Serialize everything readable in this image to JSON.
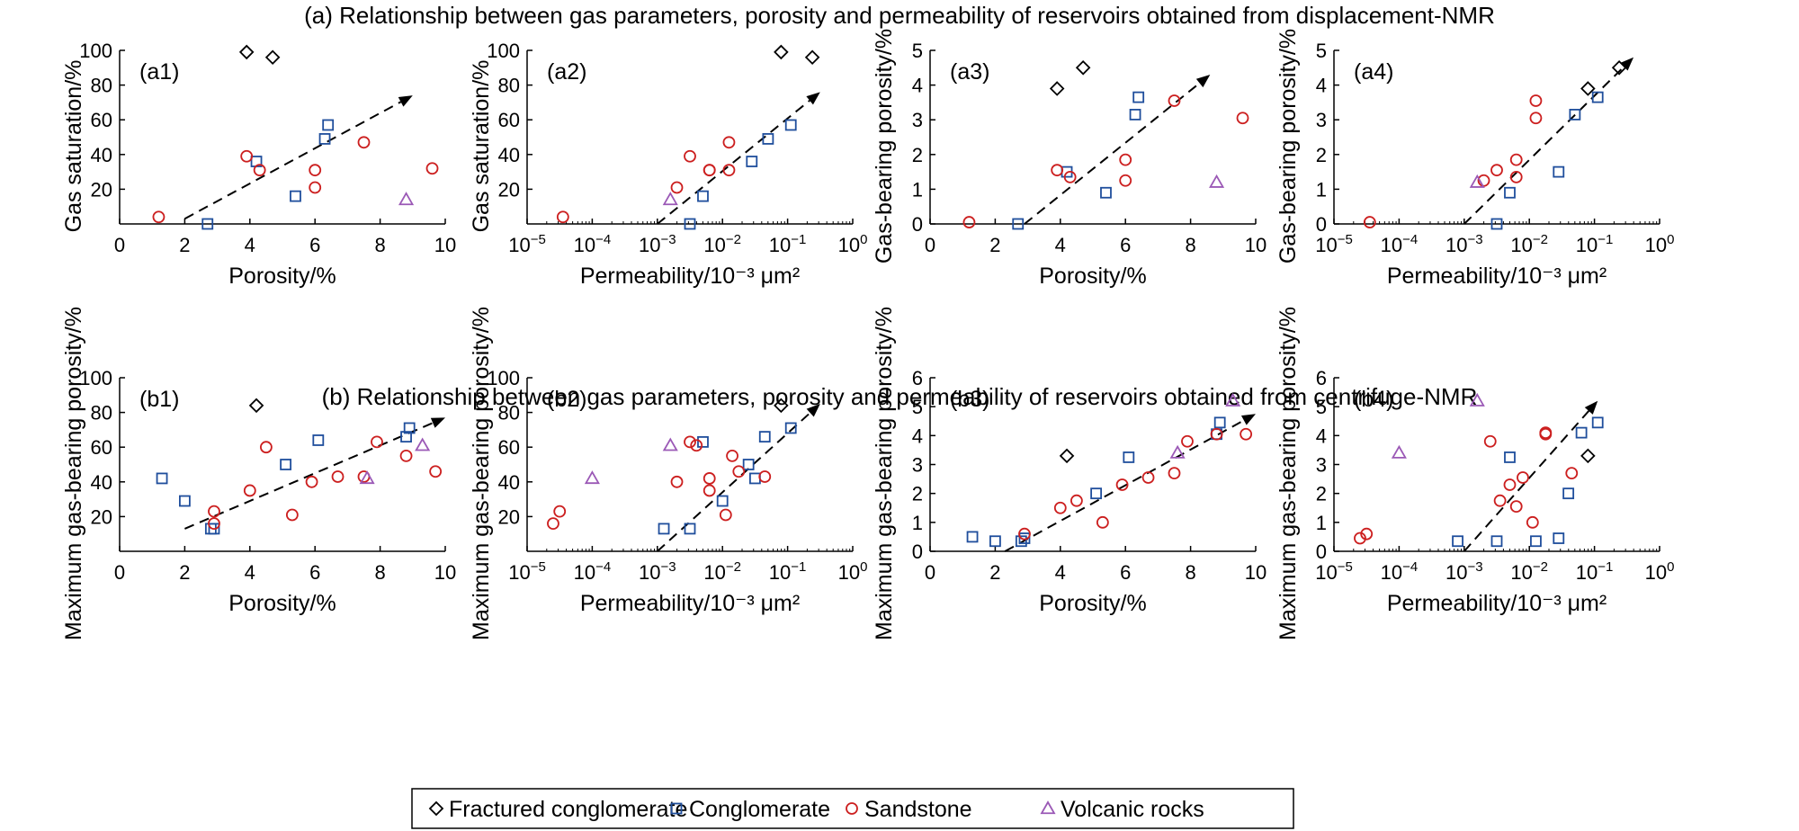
{
  "figure": {
    "title_a": "(a) Relationship between gas parameters, porosity and permeability of reservoirs obtained from displacement-NMR",
    "title_b": "(b) Relationship between gas parameters, porosity and permeability of reservoirs obtained from centrifuge-NMR"
  },
  "legend": {
    "items": [
      {
        "key": "frac",
        "label": "Fractured conglomerate",
        "marker": "diamond",
        "color": "#000000"
      },
      {
        "key": "cong",
        "label": "Conglomerate",
        "marker": "square",
        "color": "#1f4e9c"
      },
      {
        "key": "sand",
        "label": "Sandstone",
        "marker": "circle",
        "color": "#cc1f1f"
      },
      {
        "key": "volc",
        "label": "Volcanic rocks",
        "marker": "triangle",
        "color": "#9b59b6"
      }
    ]
  },
  "colors": {
    "frac": "#000000",
    "cong": "#1f4e9c",
    "sand": "#cc1f1f",
    "volc": "#9b59b6"
  },
  "chart_data": [
    {
      "id": "a1",
      "type": "scatter",
      "panel_label": "(a1)",
      "xlabel": "Porosity/%",
      "ylabel": "Gas saturation/%",
      "xscale": "linear",
      "xlim": [
        0,
        10
      ],
      "ylim": [
        0,
        100
      ],
      "xticks": [
        0,
        2,
        4,
        6,
        8,
        10
      ],
      "yticks": [
        20,
        40,
        60,
        80,
        100
      ],
      "trend": [
        [
          2.0,
          3
        ],
        [
          9.0,
          74
        ]
      ],
      "series": {
        "frac": [
          [
            3.9,
            99
          ],
          [
            4.7,
            96
          ]
        ],
        "cong": [
          [
            2.7,
            0
          ],
          [
            4.2,
            36
          ],
          [
            5.4,
            16
          ],
          [
            6.3,
            49
          ],
          [
            6.4,
            57
          ]
        ],
        "sand": [
          [
            1.2,
            4
          ],
          [
            3.9,
            39
          ],
          [
            4.3,
            31
          ],
          [
            6.0,
            31
          ],
          [
            6.0,
            21
          ],
          [
            7.5,
            47
          ],
          [
            9.6,
            32
          ]
        ],
        "volc": [
          [
            8.8,
            14
          ]
        ]
      }
    },
    {
      "id": "a2",
      "type": "scatter",
      "panel_label": "(a2)",
      "xlabel": "Permeability/10⁻³ μm²",
      "ylabel": "Gas saturation/%",
      "xscale": "log",
      "xlim": [
        -5,
        0
      ],
      "ylim": [
        0,
        100
      ],
      "xticks": [
        -5,
        -4,
        -3,
        -2,
        -1,
        0
      ],
      "yticks": [
        20,
        40,
        60,
        80,
        100
      ],
      "trend": [
        [
          -3.0,
          0
        ],
        [
          -0.5,
          76
        ]
      ],
      "series": {
        "frac": [
          [
            -1.1,
            99
          ],
          [
            -0.62,
            96
          ]
        ],
        "cong": [
          [
            -2.5,
            0
          ],
          [
            -2.3,
            16
          ],
          [
            -1.55,
            36
          ],
          [
            -1.3,
            49
          ],
          [
            -0.95,
            57
          ]
        ],
        "sand": [
          [
            -4.45,
            4
          ],
          [
            -2.7,
            21
          ],
          [
            -2.5,
            39
          ],
          [
            -2.2,
            31
          ],
          [
            -2.2,
            31
          ],
          [
            -1.9,
            31
          ],
          [
            -1.9,
            47
          ]
        ],
        "volc": [
          [
            -2.8,
            14
          ]
        ]
      }
    },
    {
      "id": "a3",
      "type": "scatter",
      "panel_label": "(a3)",
      "xlabel": "Porosity/%",
      "ylabel": "Gas-bearing porosity/%",
      "xscale": "linear",
      "xlim": [
        0,
        10
      ],
      "ylim": [
        0,
        5
      ],
      "xticks": [
        0,
        2,
        4,
        6,
        8,
        10
      ],
      "yticks": [
        0,
        1,
        2,
        3,
        4,
        5
      ],
      "trend": [
        [
          2.9,
          0
        ],
        [
          8.6,
          4.3
        ]
      ],
      "series": {
        "frac": [
          [
            3.9,
            3.9
          ],
          [
            4.7,
            4.5
          ]
        ],
        "cong": [
          [
            2.7,
            0
          ],
          [
            4.2,
            1.5
          ],
          [
            5.4,
            0.9
          ],
          [
            6.3,
            3.15
          ],
          [
            6.4,
            3.65
          ]
        ],
        "sand": [
          [
            1.2,
            0.05
          ],
          [
            3.9,
            1.55
          ],
          [
            4.3,
            1.35
          ],
          [
            6.0,
            1.85
          ],
          [
            6.0,
            1.25
          ],
          [
            7.5,
            3.55
          ],
          [
            9.6,
            3.05
          ]
        ],
        "volc": [
          [
            8.8,
            1.2
          ]
        ]
      }
    },
    {
      "id": "a4",
      "type": "scatter",
      "panel_label": "(a4)",
      "xlabel": "Permeability/10⁻³ μm²",
      "ylabel": "Gas-bearing porosity/%",
      "xscale": "log",
      "xlim": [
        -5,
        0
      ],
      "ylim": [
        0,
        5
      ],
      "xticks": [
        -5,
        -4,
        -3,
        -2,
        -1,
        0
      ],
      "yticks": [
        0,
        1,
        2,
        3,
        4,
        5
      ],
      "trend": [
        [
          -3.0,
          0
        ],
        [
          -0.4,
          4.8
        ]
      ],
      "series": {
        "frac": [
          [
            -1.1,
            3.9
          ],
          [
            -0.62,
            4.5
          ]
        ],
        "cong": [
          [
            -2.5,
            0
          ],
          [
            -2.3,
            0.9
          ],
          [
            -1.55,
            1.5
          ],
          [
            -1.3,
            3.15
          ],
          [
            -0.95,
            3.65
          ]
        ],
        "sand": [
          [
            -4.45,
            0.05
          ],
          [
            -2.7,
            1.25
          ],
          [
            -2.5,
            1.55
          ],
          [
            -2.2,
            1.85
          ],
          [
            -2.2,
            1.35
          ],
          [
            -1.9,
            3.05
          ],
          [
            -1.9,
            3.55
          ]
        ],
        "volc": [
          [
            -2.8,
            1.2
          ]
        ]
      }
    },
    {
      "id": "b1",
      "type": "scatter",
      "panel_label": "(b1)",
      "xlabel": "Porosity/%",
      "ylabel": "Maximum gas-bearing porosity/%",
      "xscale": "linear",
      "xlim": [
        0,
        10
      ],
      "ylim": [
        0,
        100
      ],
      "xticks": [
        0,
        2,
        4,
        6,
        8,
        10
      ],
      "yticks": [
        20,
        40,
        60,
        80,
        100
      ],
      "trend": [
        [
          2.0,
          13
        ],
        [
          10.0,
          77
        ]
      ],
      "series": {
        "frac": [
          [
            4.2,
            84
          ]
        ],
        "cong": [
          [
            1.3,
            42
          ],
          [
            2.0,
            29
          ],
          [
            2.8,
            13
          ],
          [
            2.9,
            13
          ],
          [
            5.1,
            50
          ],
          [
            6.1,
            64
          ],
          [
            8.8,
            66
          ],
          [
            8.9,
            71
          ]
        ],
        "sand": [
          [
            2.9,
            16
          ],
          [
            2.9,
            23
          ],
          [
            4.0,
            35
          ],
          [
            4.5,
            60
          ],
          [
            5.3,
            21
          ],
          [
            5.9,
            40
          ],
          [
            6.7,
            43
          ],
          [
            7.5,
            43
          ],
          [
            7.9,
            63
          ],
          [
            8.8,
            55
          ],
          [
            9.7,
            46
          ]
        ],
        "volc": [
          [
            7.6,
            42
          ],
          [
            9.3,
            61
          ]
        ]
      }
    },
    {
      "id": "b2",
      "type": "scatter",
      "panel_label": "(b2)",
      "xlabel": "Permeability/10⁻³ μm²",
      "ylabel": "Maximum gas-bearing porosity/%",
      "xscale": "log",
      "xlim": [
        -5,
        0
      ],
      "ylim": [
        0,
        100
      ],
      "xticks": [
        -5,
        -4,
        -3,
        -2,
        -1,
        0
      ],
      "yticks": [
        20,
        40,
        60,
        80,
        100
      ],
      "trend": [
        [
          -3.0,
          0
        ],
        [
          -0.5,
          85
        ]
      ],
      "series": {
        "frac": [
          [
            -1.1,
            84
          ]
        ],
        "cong": [
          [
            -2.9,
            13
          ],
          [
            -2.5,
            13
          ],
          [
            -2.3,
            63
          ],
          [
            -2.0,
            29
          ],
          [
            -1.6,
            50
          ],
          [
            -1.5,
            42
          ],
          [
            -1.35,
            66
          ],
          [
            -0.95,
            71
          ]
        ],
        "sand": [
          [
            -4.6,
            16
          ],
          [
            -4.5,
            23
          ],
          [
            -2.7,
            40
          ],
          [
            -2.5,
            63
          ],
          [
            -2.4,
            61
          ],
          [
            -2.2,
            42
          ],
          [
            -2.2,
            35
          ],
          [
            -1.95,
            21
          ],
          [
            -1.85,
            55
          ],
          [
            -1.75,
            46
          ],
          [
            -1.35,
            43
          ]
        ],
        "volc": [
          [
            -4.0,
            42
          ],
          [
            -2.8,
            61
          ]
        ]
      }
    },
    {
      "id": "b3",
      "type": "scatter",
      "panel_label": "(b3)",
      "xlabel": "Porosity/%",
      "ylabel": "Maximum gas-bearing porosity/%",
      "xscale": "linear",
      "xlim": [
        0,
        10
      ],
      "ylim": [
        0,
        6
      ],
      "xticks": [
        0,
        2,
        4,
        6,
        8,
        10
      ],
      "yticks": [
        0,
        1,
        2,
        3,
        4,
        5,
        6
      ],
      "trend": [
        [
          2.3,
          0
        ],
        [
          10.0,
          4.75
        ]
      ],
      "series": {
        "frac": [
          [
            4.2,
            3.3
          ]
        ],
        "cong": [
          [
            1.3,
            0.5
          ],
          [
            2.0,
            0.35
          ],
          [
            2.8,
            0.35
          ],
          [
            2.9,
            0.45
          ],
          [
            5.1,
            2.0
          ],
          [
            6.1,
            3.25
          ],
          [
            8.8,
            4.05
          ],
          [
            8.9,
            4.45
          ]
        ],
        "sand": [
          [
            2.9,
            0.6
          ],
          [
            4.0,
            1.5
          ],
          [
            4.5,
            1.75
          ],
          [
            5.3,
            1.0
          ],
          [
            5.9,
            2.3
          ],
          [
            6.7,
            2.55
          ],
          [
            7.5,
            2.7
          ],
          [
            7.9,
            3.8
          ],
          [
            8.8,
            4.05
          ],
          [
            9.7,
            4.05
          ]
        ],
        "volc": [
          [
            7.6,
            3.4
          ],
          [
            9.3,
            5.2
          ]
        ]
      }
    },
    {
      "id": "b4",
      "type": "scatter",
      "panel_label": "(b4)",
      "xlabel": "Permeability/10⁻³ μm²",
      "ylabel": "Maximum gas-bearing porosity/%",
      "xscale": "log",
      "xlim": [
        -5,
        0
      ],
      "ylim": [
        0,
        6
      ],
      "xticks": [
        -5,
        -4,
        -3,
        -2,
        -1,
        0
      ],
      "yticks": [
        0,
        1,
        2,
        3,
        4,
        5,
        6
      ],
      "trend": [
        [
          -3.0,
          0
        ],
        [
          -0.95,
          5.2
        ]
      ],
      "series": {
        "frac": [
          [
            -1.1,
            3.3
          ]
        ],
        "cong": [
          [
            -3.1,
            0.35
          ],
          [
            -2.5,
            0.35
          ],
          [
            -2.3,
            3.25
          ],
          [
            -1.9,
            0.35
          ],
          [
            -1.55,
            0.45
          ],
          [
            -1.4,
            2.0
          ],
          [
            -1.2,
            4.1
          ],
          [
            -0.95,
            4.45
          ]
        ],
        "sand": [
          [
            -4.6,
            0.45
          ],
          [
            -4.5,
            0.6
          ],
          [
            -2.6,
            3.8
          ],
          [
            -2.45,
            1.75
          ],
          [
            -2.3,
            2.3
          ],
          [
            -2.2,
            1.55
          ],
          [
            -2.1,
            2.55
          ],
          [
            -1.95,
            1.0
          ],
          [
            -1.75,
            4.05
          ],
          [
            -1.75,
            4.1
          ],
          [
            -1.35,
            2.7
          ]
        ],
        "volc": [
          [
            -4.0,
            3.4
          ],
          [
            -2.8,
            5.2
          ]
        ]
      }
    }
  ]
}
